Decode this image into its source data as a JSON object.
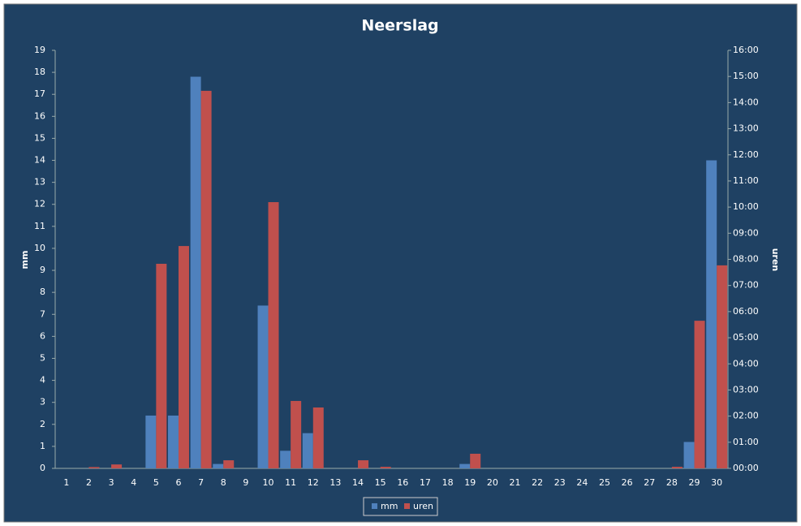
{
  "chart_data": {
    "type": "bar",
    "title": "Neerslag",
    "y_label": "mm",
    "y2_label": "uren",
    "categories": [
      "1",
      "2",
      "3",
      "4",
      "5",
      "6",
      "7",
      "8",
      "9",
      "10",
      "11",
      "12",
      "13",
      "14",
      "15",
      "16",
      "17",
      "18",
      "19",
      "20",
      "21",
      "22",
      "23",
      "24",
      "25",
      "26",
      "27",
      "28",
      "29",
      "30"
    ],
    "series": [
      {
        "name": "mm",
        "color": "#4f81bd",
        "values": [
          0,
          0,
          0,
          0,
          2.4,
          2.4,
          17.8,
          0.2,
          0,
          7.4,
          0.8,
          1.6,
          0,
          0,
          0,
          0,
          0,
          0,
          0.2,
          0,
          0,
          0,
          0,
          0,
          0,
          0,
          0,
          0,
          1.2,
          14.0
        ]
      },
      {
        "name": "uren",
        "color": "#c0504d",
        "axis": "y2",
        "values": [
          0,
          0.05,
          0.15,
          0,
          7.83,
          8.51,
          14.45,
          0.31,
          0,
          10.19,
          2.58,
          2.33,
          0,
          0.31,
          0.06,
          0,
          0,
          0,
          0.56,
          0,
          0,
          0,
          0,
          0,
          0,
          0,
          0,
          0.06,
          5.65,
          7.77
        ]
      }
    ],
    "ylim": [
      0,
      19
    ],
    "yticks": [
      0,
      1,
      2,
      3,
      4,
      5,
      6,
      7,
      8,
      9,
      10,
      11,
      12,
      13,
      14,
      15,
      16,
      17,
      18,
      19
    ],
    "y2lim": [
      0,
      16
    ],
    "y2ticks": [
      {
        "value": 0,
        "label": "00:00"
      },
      {
        "value": 1,
        "label": "01:00"
      },
      {
        "value": 2,
        "label": "02:00"
      },
      {
        "value": 3,
        "label": "03:00"
      },
      {
        "value": 4,
        "label": "04:00"
      },
      {
        "value": 5,
        "label": "05:00"
      },
      {
        "value": 6,
        "label": "06:00"
      },
      {
        "value": 7,
        "label": "07:00"
      },
      {
        "value": 8,
        "label": "08:00"
      },
      {
        "value": 9,
        "label": "09:00"
      },
      {
        "value": 10,
        "label": "10:00"
      },
      {
        "value": 11,
        "label": "11:00"
      },
      {
        "value": 12,
        "label": "12:00"
      },
      {
        "value": 13,
        "label": "13:00"
      },
      {
        "value": 14,
        "label": "14:00"
      },
      {
        "value": 15,
        "label": "15:00"
      },
      {
        "value": 16,
        "label": "16:00"
      }
    ],
    "grid": false,
    "legend": "bottom"
  }
}
